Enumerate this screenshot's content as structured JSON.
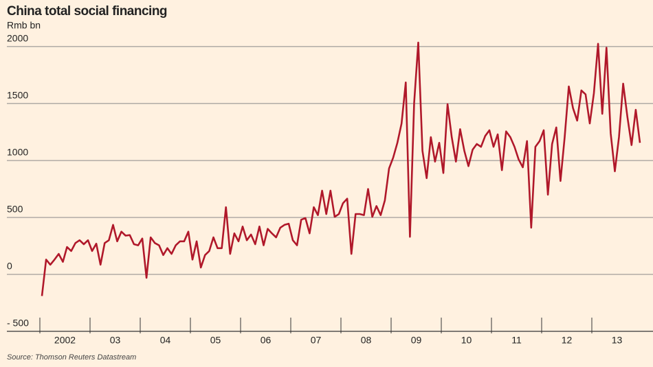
{
  "chart_data": {
    "type": "line",
    "title": "China total social financing",
    "subtitle": "Rmb bn",
    "source": "Source: Thomson Reuters Datastream",
    "categories": [
      null,
      null,
      null,
      null,
      null,
      null,
      "2002",
      null,
      null,
      null,
      null,
      null,
      null,
      null,
      null,
      null,
      null,
      null,
      "03",
      null,
      null,
      null,
      null,
      null,
      null,
      null,
      null,
      null,
      null,
      null,
      "04",
      null,
      null,
      null,
      null,
      null,
      null,
      null,
      null,
      null,
      null,
      null,
      "05",
      null,
      null,
      null,
      null,
      null,
      null,
      null,
      null,
      null,
      null,
      null,
      "06",
      null,
      null,
      null,
      null,
      null,
      null,
      null,
      null,
      null,
      null,
      null,
      "07",
      null,
      null,
      null,
      null,
      null,
      null,
      null,
      null,
      null,
      null,
      null,
      "08",
      null,
      null,
      null,
      null,
      null,
      null,
      null,
      null,
      null,
      null,
      null,
      "09",
      null,
      null,
      null,
      null,
      null,
      null,
      null,
      null,
      null,
      null,
      null,
      "10",
      null,
      null,
      null,
      null,
      null,
      null,
      null,
      null,
      null,
      null,
      null,
      "11",
      null,
      null,
      null,
      null,
      null,
      null,
      null,
      null,
      null,
      null,
      null,
      "12",
      null,
      null,
      null,
      null,
      null,
      null,
      null,
      null,
      null,
      null,
      null,
      "13",
      null,
      null,
      null,
      null,
      null
    ],
    "series": [
      {
        "name": "Total social financing",
        "color": "#b0182a",
        "values": [
          -190,
          130,
          85,
          130,
          180,
          110,
          240,
          205,
          275,
          300,
          265,
          300,
          205,
          270,
          85,
          275,
          300,
          435,
          290,
          375,
          340,
          345,
          265,
          255,
          315,
          -30,
          325,
          275,
          255,
          170,
          230,
          180,
          255,
          290,
          290,
          375,
          130,
          290,
          60,
          170,
          205,
          325,
          230,
          230,
          590,
          180,
          360,
          290,
          420,
          300,
          350,
          265,
          420,
          255,
          400,
          360,
          325,
          410,
          435,
          445,
          300,
          255,
          480,
          495,
          360,
          590,
          520,
          735,
          530,
          735,
          505,
          530,
          625,
          665,
          180,
          530,
          530,
          520,
          750,
          505,
          600,
          520,
          650,
          930,
          1025,
          1155,
          1325,
          1685,
          330,
          1505,
          2035,
          1085,
          845,
          1205,
          990,
          1155,
          890,
          1495,
          1205,
          990,
          1275,
          1085,
          950,
          1095,
          1145,
          1120,
          1215,
          1265,
          1120,
          1230,
          915,
          1255,
          1205,
          1120,
          1010,
          940,
          1170,
          410,
          1120,
          1170,
          1265,
          700,
          1145,
          1290,
          820,
          1205,
          1650,
          1460,
          1350,
          1615,
          1580,
          1325,
          1590,
          2025,
          1410,
          1990,
          1240,
          905,
          1205,
          1675,
          1385,
          1135,
          1445,
          1155
        ]
      }
    ],
    "ylim": [
      -500,
      2150
    ],
    "yticks": [
      {
        "value": -500,
        "label": "- 500"
      },
      0,
      500,
      1000,
      1500,
      2000
    ],
    "grid": true
  }
}
